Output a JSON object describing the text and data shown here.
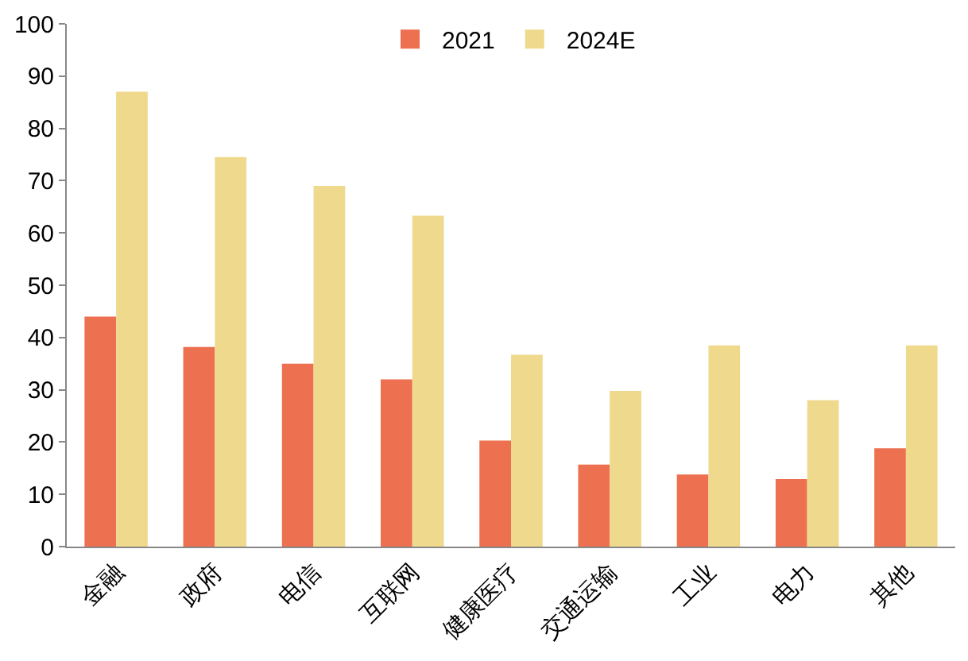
{
  "chart_data": {
    "type": "bar",
    "categories": [
      "金融",
      "政府",
      "电信",
      "互联网",
      "健康医疗",
      "交通运输",
      "工业",
      "电力",
      "其他"
    ],
    "series": [
      {
        "name": "2021",
        "color": "#ed7050",
        "values": [
          44,
          38.2,
          35,
          32,
          20.3,
          15.7,
          13.8,
          12.9,
          18.8
        ]
      },
      {
        "name": "2024E",
        "color": "#efd98c",
        "values": [
          87,
          74.5,
          69,
          63.3,
          36.7,
          29.8,
          38.5,
          28,
          38.5
        ]
      }
    ],
    "ylim": [
      0,
      100
    ],
    "yticks": [
      0,
      10,
      20,
      30,
      40,
      50,
      60,
      70,
      80,
      90,
      100
    ],
    "grid": false,
    "legend": "top"
  }
}
